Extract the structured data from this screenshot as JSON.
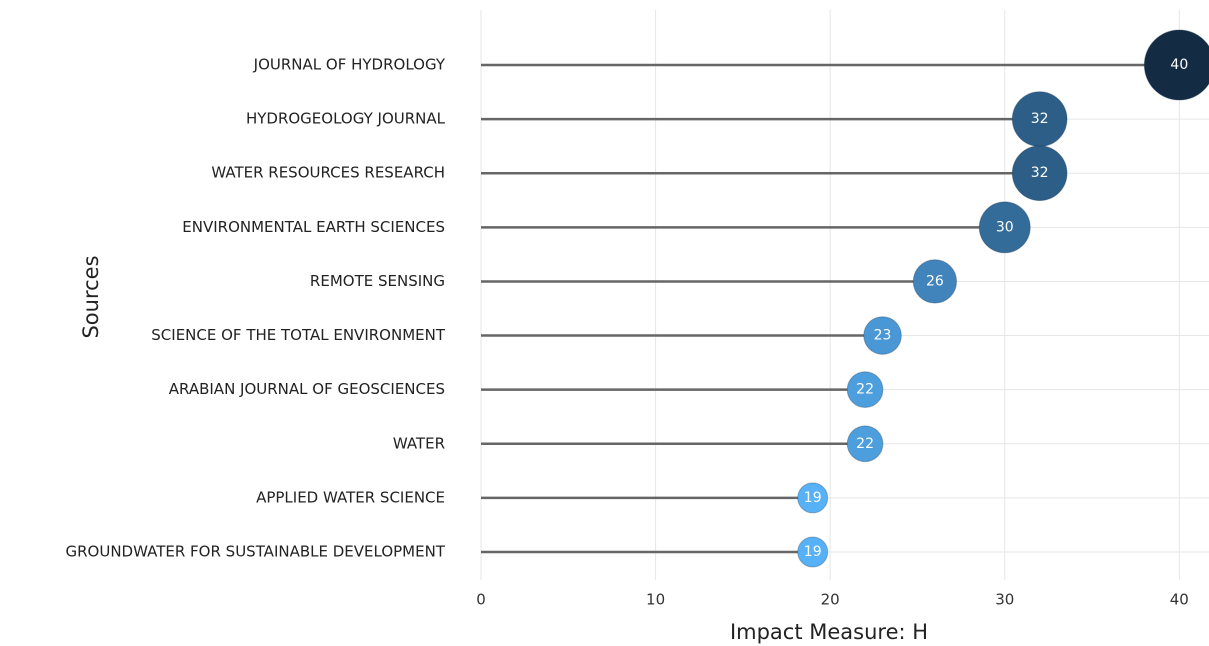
{
  "chart_data": {
    "type": "lollipop",
    "categories": [
      "JOURNAL OF HYDROLOGY",
      "HYDROGEOLOGY JOURNAL",
      "WATER RESOURCES RESEARCH",
      "ENVIRONMENTAL EARTH SCIENCES",
      "REMOTE SENSING",
      "SCIENCE OF THE TOTAL ENVIRONMENT",
      "ARABIAN JOURNAL OF GEOSCIENCES",
      "WATER",
      "APPLIED WATER SCIENCE",
      "GROUNDWATER FOR SUSTAINABLE DEVELOPMENT"
    ],
    "values": [
      40,
      32,
      32,
      30,
      26,
      23,
      22,
      22,
      19,
      19
    ],
    "xlabel": "Impact Measure: H",
    "ylabel": "Sources",
    "xlim": [
      0,
      41.7
    ],
    "xticks": [
      0,
      10,
      20,
      30,
      40
    ],
    "grid": true,
    "color_low": "#56b1f7",
    "color_high": "#132b43",
    "stem_color": "#666666"
  }
}
